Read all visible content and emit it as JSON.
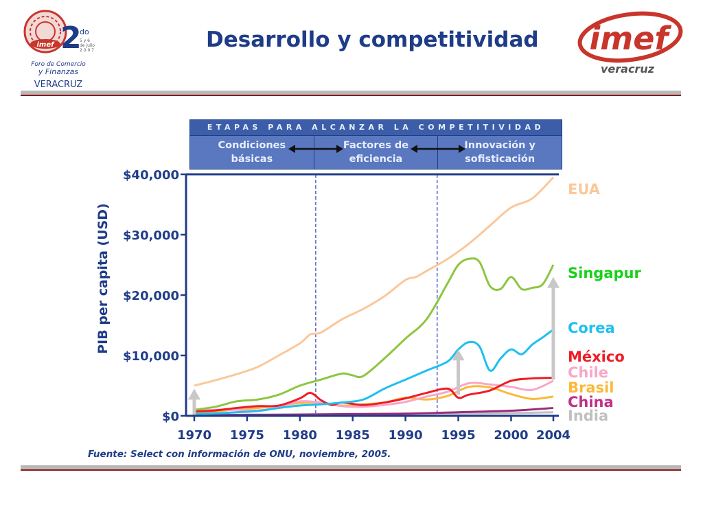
{
  "header": {
    "title": "Desarrollo y competitividad"
  },
  "logos": {
    "left": {
      "big_number": "2",
      "superscript": "do",
      "date_line1": "5 y 6",
      "date_line2": "de julio",
      "year": "2 0 0 7",
      "line1": "Foro de Comercio",
      "line2": "y Finanzas",
      "line3": "VERACRUZ",
      "badge": "imef"
    },
    "right": {
      "wordmark": "imef",
      "subtitle": "veracruz"
    }
  },
  "stages": {
    "header": "ETAPAS PARA ALCANZAR LA COMPETITIVIDAD",
    "items": [
      {
        "label": "Condiciones\nbásicas"
      },
      {
        "label": "Factores de\neficiencia"
      },
      {
        "label": "Innovación y\nsofisticación"
      }
    ]
  },
  "source": "Fuente: Select con información de ONU, noviembre, 2005.",
  "chart_data": {
    "type": "line",
    "title": "",
    "xlabel": "",
    "ylabel": "PIB per capita (USD)",
    "xlim": [
      1970,
      2004
    ],
    "ylim": [
      0,
      40000
    ],
    "x_ticks": [
      "1970",
      "1975",
      "1980",
      "1985",
      "1990",
      "1995",
      "2000",
      "2004"
    ],
    "x_tick_values": [
      1970,
      1975,
      1980,
      1985,
      1990,
      1995,
      2000,
      2004
    ],
    "y_ticks": [
      "$0",
      "$10,000",
      "$20,000",
      "$30,000",
      "$40,000"
    ],
    "y_tick_values": [
      0,
      10000,
      20000,
      30000,
      40000
    ],
    "stage_boundaries": [
      1981.5,
      1993
    ],
    "series": [
      {
        "name": "EUA",
        "color": "#f9c89b",
        "x": [
          1970,
          1972,
          1974,
          1976,
          1978,
          1980,
          1981,
          1982,
          1984,
          1986,
          1988,
          1990,
          1991,
          1992,
          1994,
          1996,
          1998,
          2000,
          2002,
          2004
        ],
        "y": [
          5000,
          5900,
          6900,
          8100,
          10000,
          12000,
          13500,
          13800,
          16000,
          17700,
          19800,
          22500,
          23000,
          24000,
          26000,
          28500,
          31500,
          34500,
          36000,
          39500
        ]
      },
      {
        "name": "Singapur",
        "color": "#8dc63f",
        "x": [
          1970,
          1972,
          1974,
          1976,
          1978,
          1980,
          1982,
          1984,
          1985,
          1986,
          1988,
          1990,
          1992,
          1994,
          1995,
          1996,
          1997,
          1998,
          1999,
          2000,
          2001,
          2002,
          2003,
          2004
        ],
        "y": [
          1000,
          1500,
          2400,
          2700,
          3500,
          5000,
          6000,
          7000,
          6700,
          6600,
          9500,
          12800,
          16000,
          22000,
          25000,
          26000,
          25500,
          21500,
          21000,
          23000,
          21000,
          21200,
          21800,
          25000
        ]
      },
      {
        "name": "Corea",
        "color": "#1ec0ef",
        "x": [
          1970,
          1972,
          1974,
          1976,
          1978,
          1980,
          1982,
          1984,
          1986,
          1988,
          1990,
          1992,
          1994,
          1995,
          1996,
          1997,
          1998,
          1999,
          2000,
          2001,
          2002,
          2003,
          2004
        ],
        "y": [
          300,
          400,
          600,
          800,
          1300,
          1700,
          1900,
          2200,
          2700,
          4500,
          6000,
          7500,
          9000,
          11000,
          12200,
          11500,
          7500,
          9500,
          11000,
          10200,
          11800,
          13000,
          14300
        ]
      },
      {
        "name": "México",
        "color": "#ee1c25",
        "x": [
          1970,
          1972,
          1974,
          1976,
          1978,
          1980,
          1981,
          1982,
          1983,
          1984,
          1986,
          1988,
          1990,
          1992,
          1994,
          1995,
          1996,
          1998,
          2000,
          2002,
          2004
        ],
        "y": [
          700,
          900,
          1300,
          1600,
          1700,
          2900,
          3800,
          2600,
          1800,
          2200,
          1800,
          2200,
          2900,
          3800,
          4500,
          3000,
          3500,
          4200,
          5800,
          6200,
          6300
        ]
      },
      {
        "name": "Chile",
        "color": "#f9a6c8",
        "x": [
          1970,
          1972,
          1974,
          1976,
          1978,
          1980,
          1982,
          1984,
          1986,
          1988,
          1990,
          1992,
          1994,
          1996,
          1998,
          2000,
          2002,
          2004
        ],
        "y": [
          900,
          1000,
          1000,
          900,
          1400,
          2400,
          2200,
          1600,
          1500,
          1800,
          2300,
          3200,
          4000,
          5400,
          5200,
          4800,
          4300,
          5800
        ]
      },
      {
        "name": "Brasil",
        "color": "#fbb93a",
        "x": [
          1970,
          1972,
          1974,
          1976,
          1978,
          1980,
          1982,
          1984,
          1986,
          1988,
          1990,
          1992,
          1994,
          1996,
          1998,
          2000,
          2002,
          2004
        ],
        "y": [
          500,
          700,
          1100,
          1300,
          1700,
          2100,
          2200,
          1700,
          1900,
          2200,
          3000,
          2700,
          3300,
          4800,
          4700,
          3600,
          2800,
          3200
        ]
      },
      {
        "name": "China",
        "color": "#9b2c7a",
        "x": [
          1970,
          1975,
          1980,
          1985,
          1990,
          1995,
          2000,
          2004
        ],
        "y": [
          120,
          180,
          200,
          300,
          350,
          600,
          850,
          1300
        ]
      },
      {
        "name": "India",
        "color": "#c0c0c0",
        "x": [
          1970,
          1975,
          1980,
          1985,
          1990,
          1995,
          2000,
          2004
        ],
        "y": [
          100,
          150,
          250,
          300,
          380,
          380,
          450,
          600
        ]
      }
    ],
    "legend": [
      {
        "label": "EUA",
        "color": "#f9c89b"
      },
      {
        "label": "Singapur",
        "color": "#18d118"
      },
      {
        "label": "Corea",
        "color": "#1ec0ef"
      },
      {
        "label": "México",
        "color": "#ee1c25"
      },
      {
        "label": "Chile",
        "color": "#f9a6c8"
      },
      {
        "label": "Brasil",
        "color": "#fbb93a"
      },
      {
        "label": "China",
        "color": "#c0308a"
      },
      {
        "label": "India",
        "color": "#c0c0c0"
      }
    ],
    "arrows": [
      {
        "x": 1970,
        "from": 0,
        "to": 4500
      },
      {
        "x": 1995,
        "from": 3500,
        "to": 11000
      },
      {
        "x": 2004,
        "from": 6000,
        "to": 23000
      }
    ]
  }
}
